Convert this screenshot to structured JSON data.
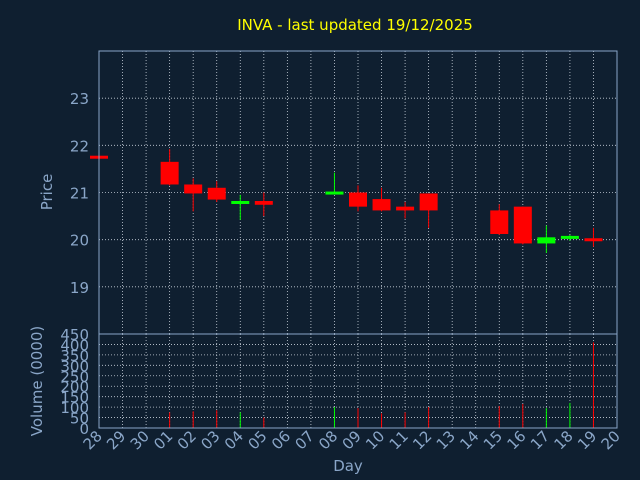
{
  "chart_data": {
    "type": "candlestick",
    "title": "INVA - last updated 19/12/2025",
    "price_axis": {
      "label": "Price",
      "ylim": [
        18,
        24
      ],
      "ticks": [
        {
          "value": 19,
          "label": "19"
        },
        {
          "value": 20,
          "label": "20"
        },
        {
          "value": 21,
          "label": "21"
        },
        {
          "value": 22,
          "label": "22"
        },
        {
          "value": 23,
          "label": "23"
        }
      ]
    },
    "volume_axis": {
      "label": "Volume (0000)",
      "ylim": [
        0,
        450
      ],
      "ticks": [
        {
          "value": 0,
          "label": "0"
        },
        {
          "value": 50,
          "label": "50"
        },
        {
          "value": 100,
          "label": "100"
        },
        {
          "value": 150,
          "label": "150"
        },
        {
          "value": 200,
          "label": "200"
        },
        {
          "value": 250,
          "label": "250"
        },
        {
          "value": 300,
          "label": "300"
        },
        {
          "value": 350,
          "label": "350"
        },
        {
          "value": 400,
          "label": "400"
        },
        {
          "value": 450,
          "label": "450"
        }
      ]
    },
    "x_axis": {
      "label": "Day",
      "tick_labels": [
        "28",
        "29",
        "30",
        "01",
        "02",
        "03",
        "04",
        "05",
        "06",
        "07",
        "08",
        "09",
        "10",
        "11",
        "12",
        "13",
        "14",
        "15",
        "16",
        "17",
        "18",
        "19",
        "20"
      ]
    },
    "candles": [
      {
        "day": "28",
        "open": 21.78,
        "high": 21.78,
        "low": 21.74,
        "close": 21.74,
        "volume": 0
      },
      {
        "day": "01",
        "open": 21.65,
        "high": 21.92,
        "low": 21.15,
        "close": 21.17,
        "volume": 75
      },
      {
        "day": "02",
        "open": 21.17,
        "high": 21.3,
        "low": 20.6,
        "close": 20.98,
        "volume": 80
      },
      {
        "day": "03",
        "open": 21.1,
        "high": 21.24,
        "low": 20.8,
        "close": 20.85,
        "volume": 85
      },
      {
        "day": "04",
        "open": 20.77,
        "high": 20.95,
        "low": 20.42,
        "close": 20.82,
        "volume": 75
      },
      {
        "day": "05",
        "open": 20.82,
        "high": 21.0,
        "low": 20.5,
        "close": 20.74,
        "volume": 50
      },
      {
        "day": "08",
        "open": 20.98,
        "high": 21.42,
        "low": 20.98,
        "close": 21.02,
        "volume": 100
      },
      {
        "day": "09",
        "open": 21.0,
        "high": 21.15,
        "low": 20.6,
        "close": 20.7,
        "volume": 95
      },
      {
        "day": "10",
        "open": 20.86,
        "high": 21.1,
        "low": 20.6,
        "close": 20.62,
        "volume": 70
      },
      {
        "day": "11",
        "open": 20.7,
        "high": 20.8,
        "low": 20.45,
        "close": 20.62,
        "volume": 75
      },
      {
        "day": "12",
        "open": 20.98,
        "high": 20.98,
        "low": 20.25,
        "close": 20.62,
        "volume": 100
      },
      {
        "day": "15",
        "open": 20.62,
        "high": 20.75,
        "low": 20.1,
        "close": 20.12,
        "volume": 105
      },
      {
        "day": "16",
        "open": 20.7,
        "high": 20.7,
        "low": 19.9,
        "close": 19.92,
        "volume": 115
      },
      {
        "day": "17",
        "open": 19.92,
        "high": 20.3,
        "low": 19.72,
        "close": 20.05,
        "volume": 95
      },
      {
        "day": "18",
        "open": 20.02,
        "high": 20.1,
        "low": 19.98,
        "close": 20.08,
        "volume": 120
      },
      {
        "day": "19",
        "open": 20.03,
        "high": 20.25,
        "low": 19.85,
        "close": 19.99,
        "volume": 410
      }
    ],
    "colors": {
      "background": "#0f1f30",
      "up": "#00ff00",
      "down": "#ff0000",
      "title": "#ffff00",
      "axis_text": "#8aa6c8",
      "grid": "#c8d0da"
    },
    "grid": true
  }
}
